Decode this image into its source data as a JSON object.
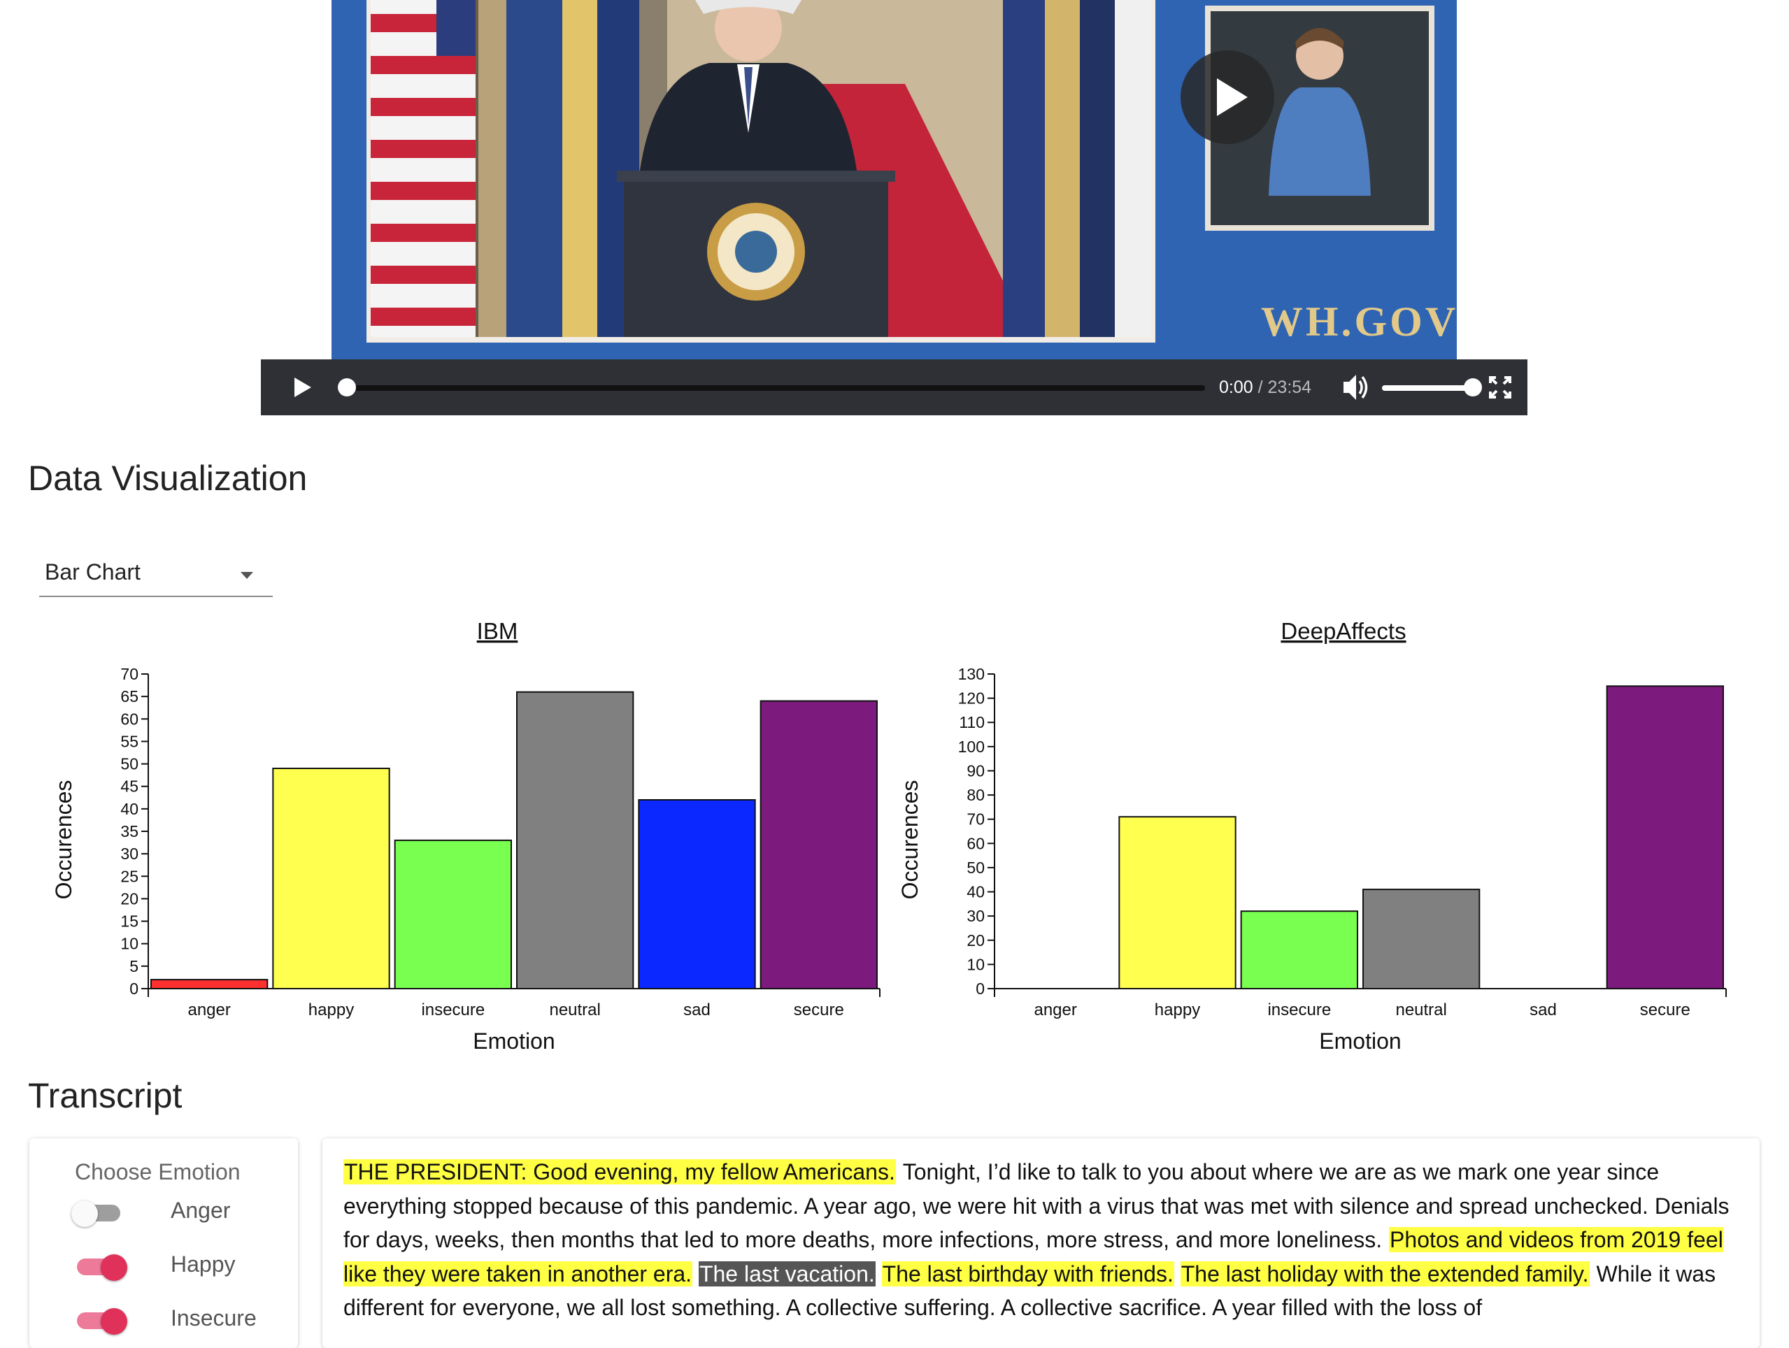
{
  "video": {
    "current_time": "0:00",
    "duration": "/ 23:54",
    "progress_fraction": 0.0,
    "volume_fraction": 1.0,
    "watermark": "WH.GOV"
  },
  "data_visualization": {
    "heading": "Data Visualization",
    "chart_type_select": {
      "value": "Bar Chart"
    }
  },
  "chart_data": [
    {
      "type": "bar",
      "title": "IBM",
      "xlabel": "Emotion",
      "ylabel": "Occurences",
      "categories": [
        "anger",
        "happy",
        "insecure",
        "neutral",
        "sad",
        "secure"
      ],
      "values": [
        2,
        49,
        33,
        66,
        42,
        64
      ],
      "colors": [
        "#ff3030",
        "#ffff50",
        "#78ff50",
        "#808080",
        "#0a28ff",
        "#7d1a7d"
      ],
      "ylim": [
        0,
        70
      ],
      "yticks": [
        0,
        5,
        10,
        15,
        20,
        25,
        30,
        35,
        40,
        45,
        50,
        55,
        60,
        65,
        70
      ],
      "grid": false,
      "legend": "none"
    },
    {
      "type": "bar",
      "title": "DeepAffects",
      "xlabel": "Emotion",
      "ylabel": "Occurences",
      "categories": [
        "anger",
        "happy",
        "insecure",
        "neutral",
        "sad",
        "secure"
      ],
      "values": [
        0,
        71,
        32,
        41,
        0,
        125
      ],
      "colors": [
        "#ff3030",
        "#ffff50",
        "#78ff50",
        "#808080",
        "#0a28ff",
        "#7d1a7d"
      ],
      "ylim": [
        0,
        130
      ],
      "yticks": [
        0,
        10,
        20,
        30,
        40,
        50,
        60,
        70,
        80,
        90,
        100,
        110,
        120,
        130
      ],
      "grid": false,
      "legend": "none"
    }
  ],
  "transcript": {
    "heading": "Transcript",
    "panel_title": "Choose Emotion",
    "emotions": [
      {
        "label": "Anger",
        "on": false
      },
      {
        "label": "Happy",
        "on": true
      },
      {
        "label": "Insecure",
        "on": true
      }
    ],
    "segments": [
      {
        "text": "THE PRESIDENT: Good evening, my fellow Americans.",
        "highlight": "yellow"
      },
      {
        "text": "Tonight, I’d like to talk to you about where we are as we mark one year since everything stopped because of this pandemic. A year ago, we were hit with a virus that was met with silence and spread unchecked. Denials for days, weeks, then months that led to more deaths, more infections, more stress, and more loneliness.",
        "highlight": "none"
      },
      {
        "text": "Photos and videos from 2019 feel like they were taken in another era.",
        "highlight": "yellow"
      },
      {
        "text": "The last vacation.",
        "highlight": "gray"
      },
      {
        "text": "The last birthday with friends.",
        "highlight": "yellow"
      },
      {
        "text": "The last holiday with the extended family.",
        "highlight": "yellow"
      },
      {
        "text": "While it was different for everyone, we all lost something. A collective suffering. A collective sacrifice. A year filled with the loss of",
        "highlight": "none"
      }
    ]
  }
}
